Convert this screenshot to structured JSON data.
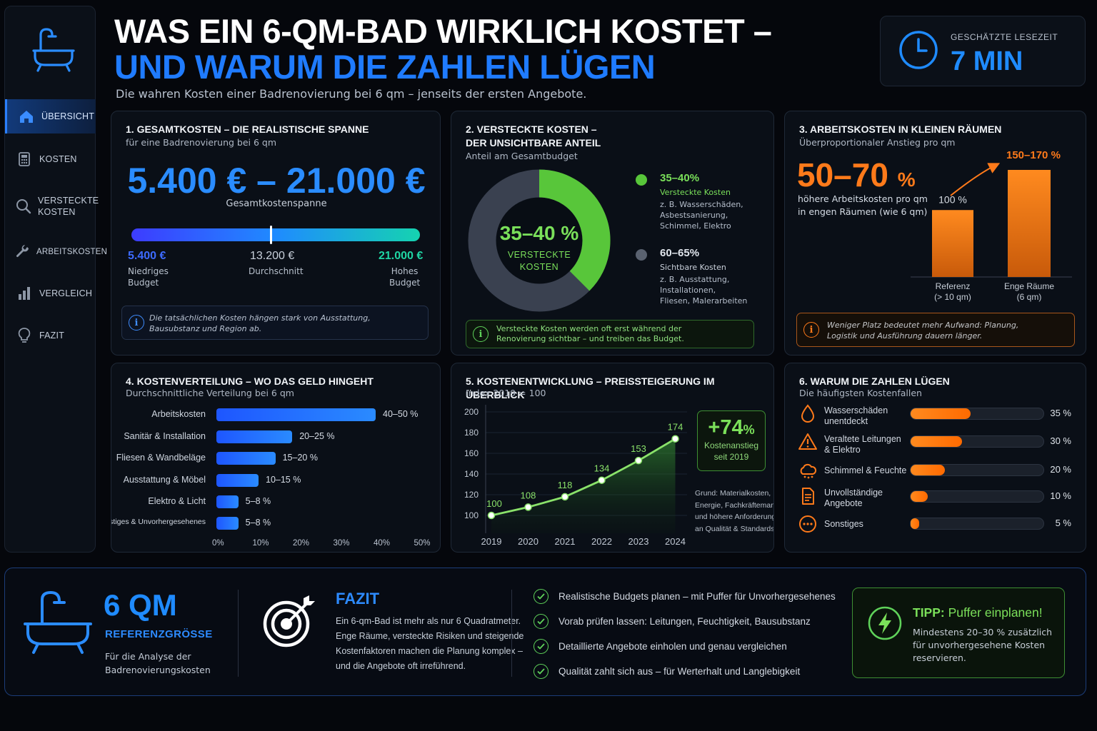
{
  "header": {
    "title_line1": "WAS EIN 6-QM-BAD WIRKLICH KOSTET –",
    "title_line2": "UND WARUM DIE ZAHLEN LÜGEN",
    "subtitle": "Die wahren Kosten einer Badrenovierung bei 6 qm – jenseits der ersten Angebote.",
    "reading_time_label": "GESCHÄTZTE LESEZEIT",
    "reading_time_value": "7 MIN"
  },
  "sidebar": {
    "items": [
      {
        "label": "ÜBERSICHT",
        "icon": "home-icon",
        "active": true
      },
      {
        "label": "KOSTEN",
        "icon": "calculator-icon",
        "active": false
      },
      {
        "label": "VERSTECKTE",
        "label2": "KOSTEN",
        "icon": "search-icon",
        "active": false
      },
      {
        "label": "ARBEITSKOSTEN",
        "icon": "wrench-icon",
        "active": false
      },
      {
        "label": "VERGLEICH",
        "icon": "bar-chart-icon",
        "active": false
      },
      {
        "label": "FAZIT",
        "icon": "lightbulb-icon",
        "active": false
      }
    ]
  },
  "card1": {
    "title": "1. GESAMTKOSTEN – DIE REALISTISCHE SPANNE",
    "subtitle": "für eine Badrenovierung bei 6 qm",
    "range": "5.400 € – 21.000 €",
    "range_label": "Gesamtkostenspanne",
    "low_value": "5.400 €",
    "low_label1": "Niedriges",
    "low_label2": "Budget",
    "avg_value": "13.200 €",
    "avg_label": "Durchschnitt",
    "high_value": "21.000 €",
    "high_label1": "Hohes",
    "high_label2": "Budget",
    "info_line1": "Die tatsächlichen Kosten hängen stark von Ausstattung,",
    "info_line2": "Bausubstanz und Region ab."
  },
  "card2": {
    "title1": "2. VERSTECKTE KOSTEN –",
    "title2": "DER UNSICHTBARE ANTEIL",
    "subtitle": "Anteil am Gesamtbudget",
    "center_value": "35–40 %",
    "center_label1": "VERSTECKTE",
    "center_label2": "KOSTEN",
    "hidden_pct": "35–40%",
    "hidden_name": "Versteckte Kosten",
    "hidden_det1": "z. B. Wasserschäden,",
    "hidden_det2": "Asbestsanierung,",
    "hidden_det3": "Schimmel, Elektro",
    "visible_pct": "60–65%",
    "visible_name": "Sichtbare Kosten",
    "visible_det1": "z. B. Ausstattung,",
    "visible_det2": "Installationen,",
    "visible_det3": "Fliesen, Malerarbeiten",
    "hidden_share": 0.375,
    "colors": {
      "hidden": "#58c63a",
      "visible": "#3a4150"
    },
    "info_line1": "Versteckte Kosten werden oft erst während der",
    "info_line2": "Renovierung sichtbar – und treiben das Budget."
  },
  "card3": {
    "title": "3. ARBEITSKOSTEN IN KLEINEN RÄUMEN",
    "subtitle": "Überproportionaler Anstieg pro qm",
    "big_value": "50–70",
    "big_unit": "%",
    "big_text1": "höhere Arbeitskosten pro qm",
    "big_text2": "in engen Räumen (wie 6 qm)",
    "chart_data": {
      "type": "bar",
      "categories": [
        "Referenz (> 10 qm)",
        "Enge Räume (6 qm)"
      ],
      "values": [
        100,
        160
      ],
      "value_labels": [
        "100 %",
        "150–170 %"
      ]
    },
    "cat1_line1": "Referenz",
    "cat1_line2": "(> 10 qm)",
    "cat2_line1": "Enge Räume",
    "cat2_line2": "(6 qm)",
    "bar1_label": "100 %",
    "bar2_label": "150–170 %",
    "info_line1": "Weniger Platz bedeutet mehr Aufwand: Planung,",
    "info_line2": "Logistik und Ausführung dauern länger."
  },
  "card4": {
    "title": "4. KOSTENVERTEILUNG – WO DAS GELD HINGEHT",
    "subtitle": "Durchschnittliche Verteilung bei 6 qm",
    "chart_data": {
      "type": "bar",
      "orientation": "horizontal",
      "categories": [
        "Arbeitskosten",
        "Sanitär & Installation",
        "Fliesen & Wandbeläge",
        "Ausstattung & Möbel",
        "Elektro & Licht",
        "Sonstiges & Unvorhergesehenes"
      ],
      "values": [
        45,
        22.5,
        17.5,
        12.5,
        6.5,
        6.5
      ],
      "value_labels": [
        "40–50 %",
        "20–25 %",
        "15–20 %",
        "10–15 %",
        "5–8 %",
        "5–8 %"
      ],
      "xlim": [
        0,
        50
      ],
      "xticks": [
        "0%",
        "10%",
        "20%",
        "30%",
        "40%",
        "50%"
      ]
    }
  },
  "card5": {
    "title": "5. KOSTENENTWICKLUNG – PREISSTEIGERUNG IM ÜBERBLICK",
    "subtitle": "Index 2019 = 100",
    "chart_data": {
      "type": "area",
      "x": [
        "2019",
        "2020",
        "2021",
        "2022",
        "2023",
        "2024"
      ],
      "values": [
        100,
        108,
        118,
        134,
        153,
        174
      ],
      "ylim": [
        90,
        200
      ],
      "yticks": [
        100,
        120,
        140,
        160,
        180,
        200
      ]
    },
    "kpi_value": "+74",
    "kpi_unit": "%",
    "kpi_label1": "Kostenanstieg",
    "kpi_label2": "seit 2019",
    "note1": "Grund: Materialkosten,",
    "note2": "Energie, Fachkräftemangel",
    "note3": "und höhere Anforderungen",
    "note4": "an Qualität & Standards."
  },
  "card6": {
    "title": "6. WARUM DIE ZAHLEN LÜGEN",
    "subtitle": "Die häufigsten Kostenfallen",
    "items": [
      {
        "line1": "Wasserschäden",
        "line2": "unentdeckt",
        "value": 35,
        "label": "35 %",
        "icon": "water-drop-icon"
      },
      {
        "line1": "Veraltete Leitungen",
        "line2": "& Elektro",
        "value": 30,
        "label": "30 %",
        "icon": "warning-icon"
      },
      {
        "line1": "Schimmel & Feuchte",
        "line2": "",
        "value": 20,
        "label": "20 %",
        "icon": "mold-icon"
      },
      {
        "line1": "Unvollständige",
        "line2": "Angebote",
        "value": 10,
        "label": "10 %",
        "icon": "document-icon"
      },
      {
        "line1": "Sonstiges",
        "line2": "",
        "value": 5,
        "label": "5 %",
        "icon": "more-icon"
      }
    ]
  },
  "bottom": {
    "qm_value": "6 QM",
    "qm_label": "REFERENZGRÖSSE",
    "qm_desc1": "Für die Analyse der",
    "qm_desc2": "Badrenovierungskosten",
    "fazit_title": "FAZIT",
    "fazit_l1": "Ein 6-qm-Bad ist mehr als nur 6 Quadratmeter.",
    "fazit_l2": "Enge Räume, versteckte Risiken und steigende",
    "fazit_l3": "Kostenfaktoren machen die Planung komplex –",
    "fazit_l4": "und die Angebote oft irreführend.",
    "checklist": [
      "Realistische Budgets planen – mit Puffer für Unvorhergesehenes",
      "Vorab prüfen lassen: Leitungen, Feuchtigkeit, Bausubstanz",
      "Detaillierte Angebote einholen und genau vergleichen",
      "Qualität zahlt sich aus – für Werterhalt und Langlebigkeit"
    ],
    "tipp_title": "TIPP:",
    "tipp_title2": "Puffer einplanen!",
    "tipp_l1": "Mindestens 20–30 % zusätzlich",
    "tipp_l2": "für unvorhergesehene Kosten",
    "tipp_l3": "reservieren."
  }
}
